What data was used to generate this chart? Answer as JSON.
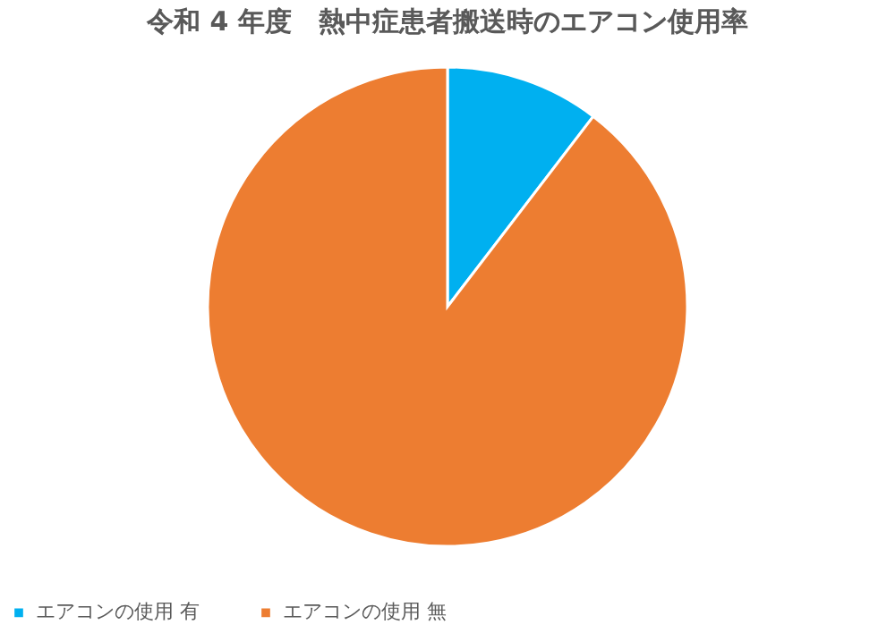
{
  "chart_data": {
    "type": "pie",
    "title": "令和 4 年度　熱中症患者搬送時のエアコン使用率",
    "categories": [
      "エアコンの使用 有",
      "エアコンの使用 無"
    ],
    "values": [
      10.4,
      89.6
    ],
    "colors": [
      "#00b0f0",
      "#ed7d31"
    ],
    "legend": "bottom"
  }
}
